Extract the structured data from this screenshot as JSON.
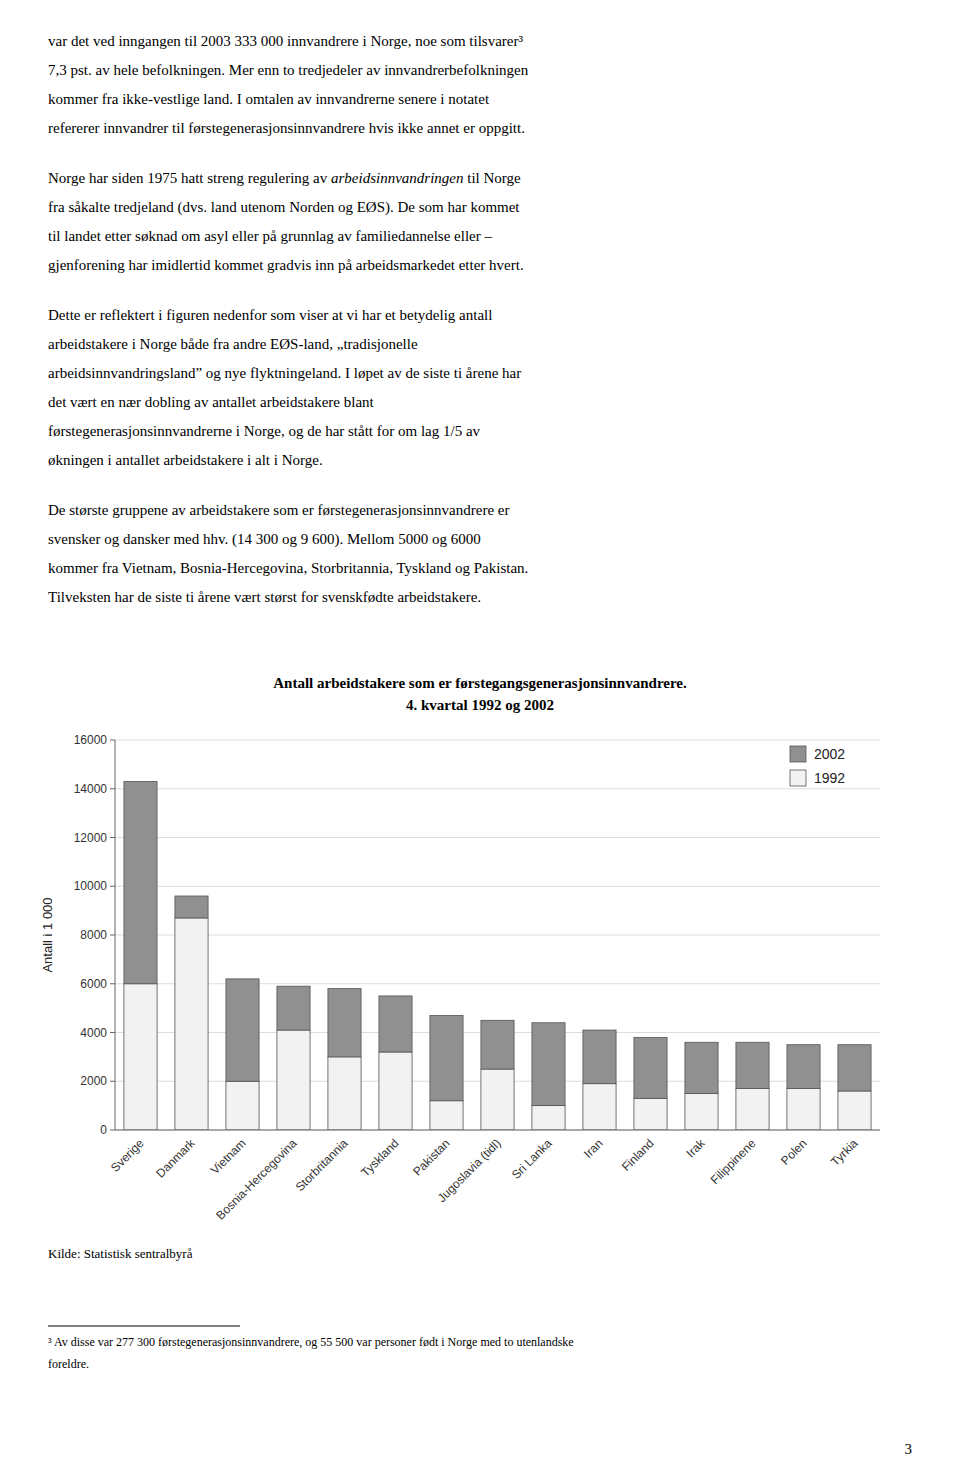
{
  "chart_data": {
    "type": "bar",
    "stacked": true,
    "title": "Antall arbeidstakere som er førstegangsgenerasjonsinnvandrere.",
    "subtitle": "4. kvartal 1992 og 2002",
    "y_label": "Antall i 1 000",
    "annotations": [
      "Kilde: Statistisk sentralbyrå"
    ],
    "categories": [
      "Sverige",
      "Danmark",
      "Vietnam",
      "Bosnia-Hercegovina",
      "Storbritannia",
      "Tyskland",
      "Pakistan",
      "Jugoslavia (tidl)",
      "Sri Lanka",
      "Iran",
      "Finland",
      "Irak",
      "Filippinene",
      "Polen",
      "Tyrkia"
    ],
    "series": [
      {
        "name": "1992",
        "color": "#f2f2f2",
        "values": [
          6000,
          8700,
          2000,
          4100,
          3000,
          3200,
          1200,
          2500,
          1000,
          1900,
          1300,
          1500,
          1700,
          1700,
          1600
        ]
      },
      {
        "name": "2002",
        "color": "#909090",
        "values": [
          8300,
          900,
          4200,
          1800,
          2800,
          2300,
          3500,
          2000,
          3400,
          2200,
          2500,
          2100,
          1900,
          1800,
          1900
        ]
      }
    ],
    "ylim": [
      0,
      16000
    ],
    "yticks": [
      0,
      2000,
      4000,
      6000,
      8000,
      10000,
      12000,
      14000,
      16000
    ],
    "grid": true,
    "legend": "upper right"
  },
  "page": {
    "paragraphs": [
      [
        "var det ved inngangen til 2003 333 000 innvandrere i Norge, noe som tilsvarer³",
        "7,3 pst. av hele befolkningen. Mer enn to tredjedeler av innvandrerbefolkningen",
        "kommer fra ikke-vestlige land. I omtalen av innvandrerne senere i notatet",
        "refererer innvandrer til førstegenerasjonsinnvandrere hvis ikke annet er oppgitt."
      ],
      [
        [
          {
            "text": "Norge har siden 1975 hatt streng regulering av ",
            "italic": false
          },
          {
            "text": "arbeidsinnvandringen",
            "italic": true
          },
          {
            "text": " til Norge",
            "italic": false
          }
        ],
        "fra såkalte tredjeland (dvs. land utenom Norden og EØS). De som har kommet",
        "til landet etter søknad om asyl eller på grunnlag av familiedannelse eller –",
        "gjenforening har imidlertid kommet gradvis inn på arbeidsmarkedet etter hvert."
      ],
      [
        "Dette er reflektert i figuren nedenfor som viser at vi har et betydelig antall",
        "arbeidstakere i Norge både fra andre EØS-land, „tradisjonelle",
        "arbeidsinnvandringsland” og nye flyktningeland. I løpet av de siste ti årene har",
        "det vært en nær dobling av antallet arbeidstakere blant",
        "førstegenerasjonsinnvandrerne i Norge, og de har stått for om lag 1/5 av",
        "økningen i antallet arbeidstakere i alt i Norge."
      ],
      [
        "De største gruppene av arbeidstakere som er førstegenerasjonsinnvandrere er",
        "svensker og dansker med hhv. (14 300 og 9 600). Mellom 5000 og 6000",
        "kommer fra Vietnam, Bosnia-Hercegovina, Storbritannia, Tyskland og Pakistan.",
        "Tilveksten har de siste ti årene vært størst for svenskfødte arbeidstakere."
      ]
    ],
    "footnotes": [
      "³ Av disse var 277 300 førstegenerasjonsinnvandrere, og 55 500 var personer født i Norge med to utenlandske",
      "foreldre."
    ],
    "page_number": "3"
  }
}
